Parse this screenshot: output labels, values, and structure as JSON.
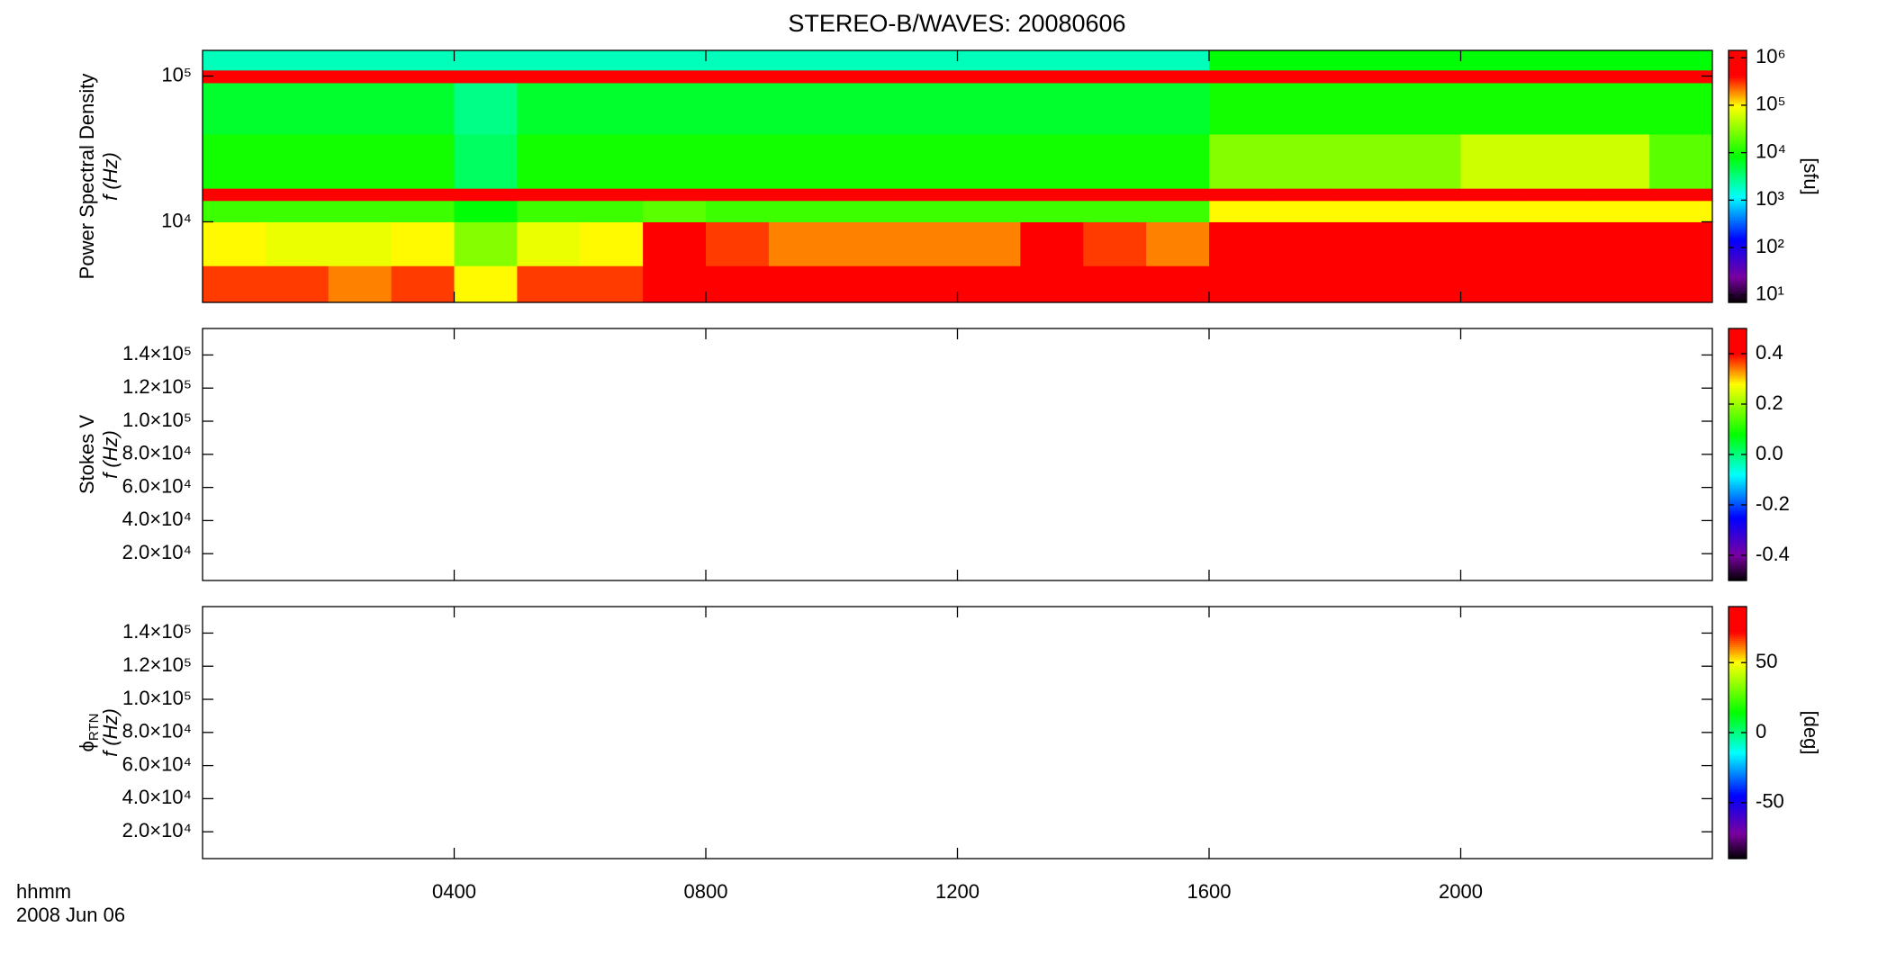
{
  "title": "STEREO-B/WAVES: 20080606",
  "x_axis": {
    "xlim": [
      0,
      24
    ],
    "xticks": [
      {
        "value": 4,
        "label": "0400"
      },
      {
        "value": 8,
        "label": "0800"
      },
      {
        "value": 12,
        "label": "1200"
      },
      {
        "value": 16,
        "label": "1600"
      },
      {
        "value": 20,
        "label": "2000"
      }
    ],
    "label": [
      "hhmm",
      "2008 Jun 06"
    ]
  },
  "chart_data": [
    {
      "type": "spectrogram",
      "ylabel": [
        "Power Spectral Density",
        "f (Hz)"
      ],
      "yscale": "log",
      "ylim": [
        2800,
        150000
      ],
      "yticks": [
        {
          "value": 10000,
          "label": "10⁴"
        },
        {
          "value": 100000,
          "label": "10⁵"
        }
      ],
      "colormap": "rainbow",
      "colorbar": {
        "scale": "log",
        "zlim": [
          7,
          1430000
        ],
        "label": "[sfu]",
        "ticks": [
          {
            "value": 10,
            "label": "10¹"
          },
          {
            "value": 100,
            "label": "10²"
          },
          {
            "value": 1000,
            "label": "10³"
          },
          {
            "value": 10000,
            "label": "10⁴"
          },
          {
            "value": 100000,
            "label": "10⁵"
          },
          {
            "value": 1000000,
            "label": "10⁶"
          }
        ]
      },
      "time_edges": [
        0,
        1,
        2,
        3,
        4,
        5,
        6,
        7,
        8,
        9,
        10,
        11,
        12,
        13,
        14,
        15,
        16,
        17,
        18,
        19,
        20,
        21,
        22,
        23,
        24
      ],
      "freq_edges": [
        2800,
        5000,
        10000,
        14000,
        17000,
        40000,
        90000,
        110000,
        150000
      ],
      "z": [
        [
          300000,
          300000,
          200000,
          300000,
          100000,
          300000,
          300000,
          1000000,
          600000,
          500000,
          500000,
          500000,
          500000,
          800000,
          600000,
          500000,
          1000000,
          1000000,
          1000000,
          1000000,
          1000000,
          1000000,
          1000000,
          1000000
        ],
        [
          100000,
          80000,
          80000,
          100000,
          30000,
          80000,
          100000,
          1000000,
          300000,
          200000,
          200000,
          200000,
          200000,
          500000,
          300000,
          200000,
          1000000,
          1000000,
          1000000,
          1000000,
          1000000,
          1000000,
          1000000,
          1000000
        ],
        [
          15000,
          15000,
          15000,
          15000,
          8000,
          15000,
          15000,
          20000,
          15000,
          15000,
          15000,
          15000,
          15000,
          15000,
          15000,
          15000,
          100000,
          100000,
          100000,
          100000,
          100000,
          100000,
          100000,
          100000
        ],
        [
          1000000,
          1000000,
          1000000,
          1000000,
          1000000,
          1000000,
          1000000,
          1000000,
          1000000,
          1000000,
          1000000,
          1000000,
          1000000,
          1000000,
          1000000,
          1000000,
          1000000,
          1000000,
          1000000,
          1000000,
          1000000,
          1000000,
          1000000,
          1000000
        ],
        [
          10000,
          10000,
          10000,
          10000,
          4000,
          10000,
          10000,
          10000,
          10000,
          10000,
          10000,
          10000,
          10000,
          10000,
          10000,
          10000,
          30000,
          30000,
          30000,
          30000,
          60000,
          60000,
          60000,
          20000
        ],
        [
          6000,
          6000,
          6000,
          6000,
          3000,
          6000,
          6000,
          6000,
          6000,
          6000,
          6000,
          6000,
          6000,
          6000,
          6000,
          6000,
          10000,
          10000,
          10000,
          10000,
          10000,
          10000,
          10000,
          10000
        ],
        [
          1000000,
          1000000,
          1000000,
          1000000,
          1000000,
          1000000,
          1000000,
          1000000,
          1000000,
          1000000,
          1000000,
          1000000,
          1000000,
          1000000,
          1000000,
          1000000,
          1000000,
          1000000,
          1000000,
          1000000,
          1000000,
          1000000,
          1000000,
          1000000
        ],
        [
          2000,
          2000,
          2000,
          2000,
          2000,
          2000,
          2000,
          2000,
          2000,
          2000,
          2000,
          2000,
          2000,
          2000,
          2000,
          2000,
          8000,
          8000,
          8000,
          8000,
          8000,
          8000,
          8000,
          8000
        ]
      ]
    },
    {
      "type": "spectrogram",
      "ylabel": [
        "Stokes V",
        "f (Hz)"
      ],
      "yscale": "linear",
      "ylim": [
        3800,
        156000
      ],
      "yticks": [
        {
          "value": 20000,
          "label": "2.0×10⁴"
        },
        {
          "value": 40000,
          "label": "4.0×10⁴"
        },
        {
          "value": 60000,
          "label": "6.0×10⁴"
        },
        {
          "value": 80000,
          "label": "8.0×10⁴"
        },
        {
          "value": 100000,
          "label": "1.0×10⁵"
        },
        {
          "value": 120000,
          "label": "1.2×10⁵"
        },
        {
          "value": 140000,
          "label": "1.4×10⁵"
        }
      ],
      "colormap": "rainbow",
      "colorbar": {
        "scale": "linear",
        "zlim": [
          -0.5,
          0.5
        ],
        "ticks": [
          -0.4,
          -0.2,
          {
            "value": 0,
            "label": "0.0"
          },
          0.2,
          0.4
        ]
      }
    },
    {
      "type": "spectrogram",
      "ylabel": [
        "ϕ",
        "f (Hz)"
      ],
      "ylabel_subscript": "RTN",
      "yscale": "linear",
      "ylim": [
        3800,
        156000
      ],
      "yticks": [
        {
          "value": 20000,
          "label": "2.0×10⁴"
        },
        {
          "value": 40000,
          "label": "4.0×10⁴"
        },
        {
          "value": 60000,
          "label": "6.0×10⁴"
        },
        {
          "value": 80000,
          "label": "8.0×10⁴"
        },
        {
          "value": 100000,
          "label": "1.0×10⁵"
        },
        {
          "value": 120000,
          "label": "1.2×10⁵"
        },
        {
          "value": 140000,
          "label": "1.4×10⁵"
        }
      ],
      "colormap": "rainbow",
      "colorbar": {
        "scale": "linear",
        "zlim": [
          -90,
          90
        ],
        "label": "[deg]",
        "ticks": [
          -50,
          0,
          50
        ]
      }
    }
  ]
}
